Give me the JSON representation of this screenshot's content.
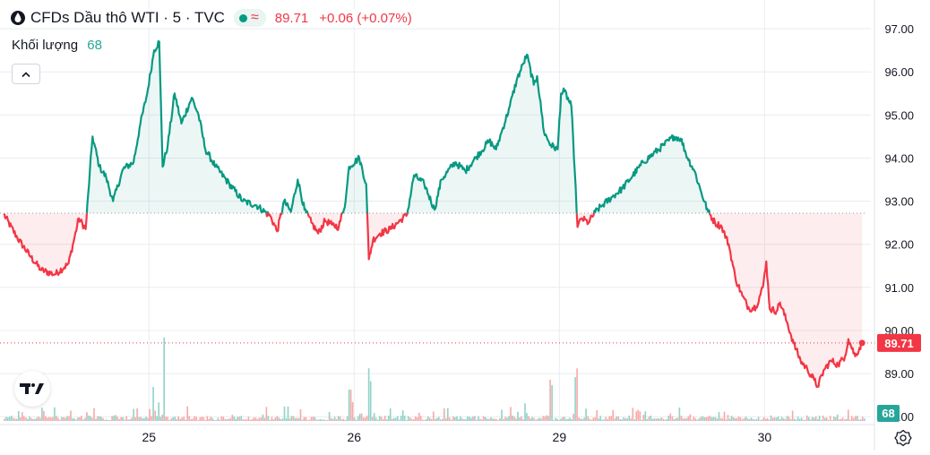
{
  "legend": {
    "title": "CFDs Dầu thô WTI · 5 · TVC",
    "wave_symbol": "≈",
    "price": "89.71",
    "change": "+0.06 (+0.07%)"
  },
  "volume_legend": {
    "label": "Khối lượng",
    "value": "68"
  },
  "colors": {
    "up": "#089981",
    "down": "#f23645",
    "up_fill": "rgba(8,153,129,0.08)",
    "down_fill": "rgba(242,54,69,0.09)",
    "grid": "#e9ecf2",
    "volume_up": "#8fd3c7",
    "volume_down": "#f7a9a7",
    "axis_text": "#131722"
  },
  "icons": {
    "symbol": "oil-drop-icon",
    "status": "market-open-dot-icon",
    "collapse": "chevron-up-icon",
    "logo": "tradingview-logo-icon",
    "settings": "gear-icon"
  },
  "chart_data": {
    "type": "area",
    "title": "CFDs Dầu thô WTI · 5 · TVC",
    "baseline": 92.72,
    "last_price": 89.71,
    "last_price_label": "89.71",
    "volume_label": "68",
    "ylim": [
      87.9,
      97.5
    ],
    "y_ticks": [
      "97.00",
      "96.00",
      "95.00",
      "94.00",
      "93.00",
      "92.00",
      "91.00",
      "90.00",
      "89.00",
      "88.00"
    ],
    "y_tick_values": [
      97,
      96,
      95,
      94,
      93,
      92,
      91,
      90,
      89,
      88
    ],
    "x_ticks": [
      "25",
      "26",
      "29",
      "30"
    ],
    "x_tick_positions": [
      42.5,
      102.5,
      162.5,
      222.5
    ],
    "xlim": [
      0,
      252
    ],
    "grid": true,
    "series": [
      {
        "anchors": [
          [
            0,
            92.7
          ],
          [
            4,
            92.15
          ],
          [
            8,
            91.7
          ],
          [
            11,
            91.4
          ],
          [
            15,
            91.3
          ],
          [
            19,
            91.55
          ],
          [
            22,
            92.6
          ],
          [
            24,
            92.35
          ],
          [
            26,
            94.5
          ],
          [
            28,
            93.8
          ],
          [
            30,
            93.55
          ],
          [
            32,
            93.0
          ],
          [
            35,
            93.75
          ],
          [
            38,
            93.9
          ],
          [
            40,
            94.8
          ],
          [
            42,
            95.5
          ],
          [
            44,
            96.5
          ],
          [
            45.5,
            96.7
          ],
          [
            46.5,
            93.8
          ],
          [
            48,
            94.3
          ],
          [
            50,
            95.5
          ],
          [
            52,
            94.8
          ],
          [
            55,
            95.4
          ],
          [
            57,
            95.0
          ],
          [
            59,
            94.2
          ],
          [
            62,
            93.8
          ],
          [
            66,
            93.4
          ],
          [
            70,
            93.0
          ],
          [
            74,
            92.9
          ],
          [
            78,
            92.65
          ],
          [
            80,
            92.3
          ],
          [
            82,
            93.0
          ],
          [
            84,
            92.75
          ],
          [
            86,
            93.5
          ],
          [
            88,
            92.8
          ],
          [
            90,
            92.5
          ],
          [
            92,
            92.25
          ],
          [
            94,
            92.55
          ],
          [
            96,
            92.45
          ],
          [
            98,
            92.4
          ],
          [
            100,
            93.0
          ],
          [
            101,
            93.8
          ],
          [
            104,
            94.0
          ],
          [
            106,
            93.4
          ],
          [
            106.8,
            91.65
          ],
          [
            108,
            92.1
          ],
          [
            110,
            92.25
          ],
          [
            113,
            92.35
          ],
          [
            116,
            92.55
          ],
          [
            118,
            92.7
          ],
          [
            120,
            93.6
          ],
          [
            123,
            93.4
          ],
          [
            126,
            92.8
          ],
          [
            128,
            93.5
          ],
          [
            132,
            93.9
          ],
          [
            135,
            93.7
          ],
          [
            138,
            94.0
          ],
          [
            142,
            94.4
          ],
          [
            144,
            94.2
          ],
          [
            146,
            94.7
          ],
          [
            148,
            95.2
          ],
          [
            150,
            95.8
          ],
          [
            152,
            96.2
          ],
          [
            153,
            96.4
          ],
          [
            155,
            95.7
          ],
          [
            156,
            95.9
          ],
          [
            158,
            94.6
          ],
          [
            160,
            94.3
          ],
          [
            162,
            94.2
          ],
          [
            163,
            95.5
          ],
          [
            164,
            95.55
          ],
          [
            166,
            95.2
          ],
          [
            167,
            93.7
          ],
          [
            167.8,
            92.4
          ],
          [
            169,
            92.6
          ],
          [
            171,
            92.5
          ],
          [
            173,
            92.75
          ],
          [
            175,
            92.9
          ],
          [
            178,
            93.1
          ],
          [
            181,
            93.3
          ],
          [
            184,
            93.6
          ],
          [
            187,
            93.9
          ],
          [
            190,
            94.1
          ],
          [
            193,
            94.3
          ],
          [
            196,
            94.5
          ],
          [
            198,
            94.45
          ],
          [
            200,
            94.0
          ],
          [
            202,
            93.7
          ],
          [
            204,
            93.2
          ],
          [
            206,
            92.75
          ],
          [
            208,
            92.5
          ],
          [
            210,
            92.4
          ],
          [
            212,
            92.0
          ],
          [
            214,
            91.2
          ],
          [
            216,
            90.8
          ],
          [
            218,
            90.5
          ],
          [
            220,
            90.55
          ],
          [
            222,
            91.0
          ],
          [
            223,
            91.6
          ],
          [
            224,
            90.5
          ],
          [
            226,
            90.45
          ],
          [
            227,
            90.65
          ],
          [
            229,
            90.2
          ],
          [
            231,
            89.7
          ],
          [
            233,
            89.3
          ],
          [
            235,
            89.1
          ],
          [
            237,
            88.85
          ],
          [
            238,
            88.7
          ],
          [
            240,
            89.1
          ],
          [
            242,
            89.3
          ],
          [
            244,
            89.2
          ],
          [
            246,
            89.4
          ],
          [
            247,
            89.8
          ],
          [
            249,
            89.4
          ],
          [
            251,
            89.71
          ]
        ]
      }
    ]
  }
}
